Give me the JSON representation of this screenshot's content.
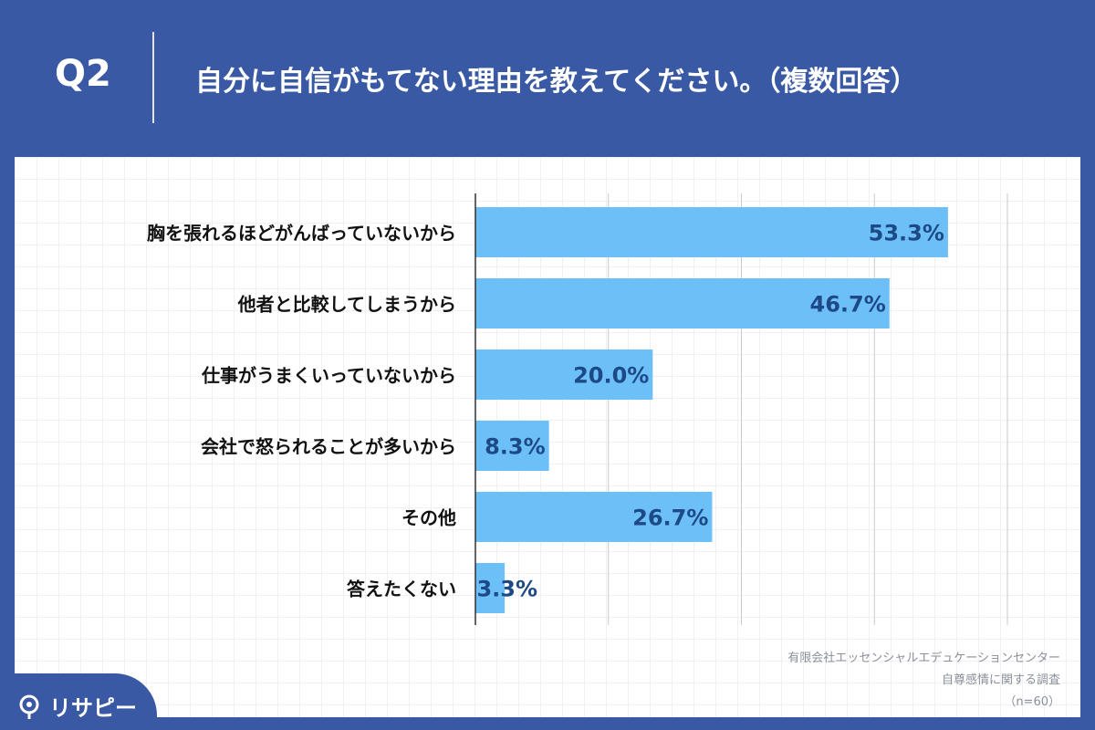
{
  "header": {
    "question_number": "Q2",
    "question_text": "自分に自信がもてない理由を教えてください。（複数回答）"
  },
  "chart_data": {
    "type": "bar",
    "orientation": "horizontal",
    "categories": [
      "胸を張れるほどがんばっていないから",
      "他者と比較してしまうから",
      "仕事がうまくいっていないから",
      "会社で怒られることが多いから",
      "その他",
      "答えたくない"
    ],
    "values": [
      53.3,
      46.7,
      20.0,
      8.3,
      26.7,
      3.3
    ],
    "value_labels": [
      "53.3%",
      "46.7%",
      "20.0%",
      "8.3%",
      "26.7%",
      "3.3%"
    ],
    "xlim": [
      0,
      60
    ],
    "gridlines": [
      0,
      15,
      30,
      45,
      60
    ],
    "grid": true,
    "colors": {
      "bar": "#6dbff8",
      "value_label": "#1d4a86",
      "gridline": "#c9c9c9",
      "axis": "#333333"
    }
  },
  "source": {
    "line1": "有限会社エッセンシャルエデュケーションセンター",
    "line2": "自尊感情に関する調査",
    "line3": "（n=60）"
  },
  "brand": {
    "name": "リサピー",
    "icon": "pin-icon",
    "color": "#3a59a4"
  }
}
